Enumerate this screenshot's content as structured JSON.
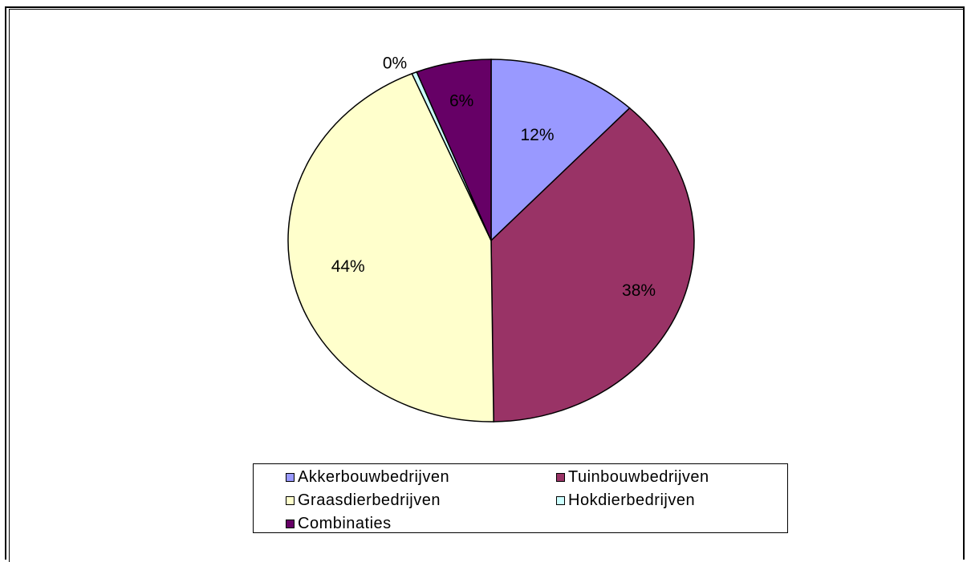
{
  "chart_data": {
    "type": "pie",
    "slices": [
      {
        "name": "Akkerbouwbedrijven",
        "value": 12,
        "label": "12%",
        "color": "#9999ff"
      },
      {
        "name": "Tuinbouwbedrijven",
        "value": 38,
        "label": "38%",
        "color": "#993366"
      },
      {
        "name": "Graasdierbedrijven",
        "value": 44,
        "label": "44%",
        "color": "#ffffcc"
      },
      {
        "name": "Hokdierbedrijven",
        "value": 0.4,
        "label": "0%",
        "color": "#ccffff"
      },
      {
        "name": "Combinaties",
        "value": 6,
        "label": "6%",
        "color": "#660066"
      }
    ],
    "legend_position": "bottom"
  }
}
